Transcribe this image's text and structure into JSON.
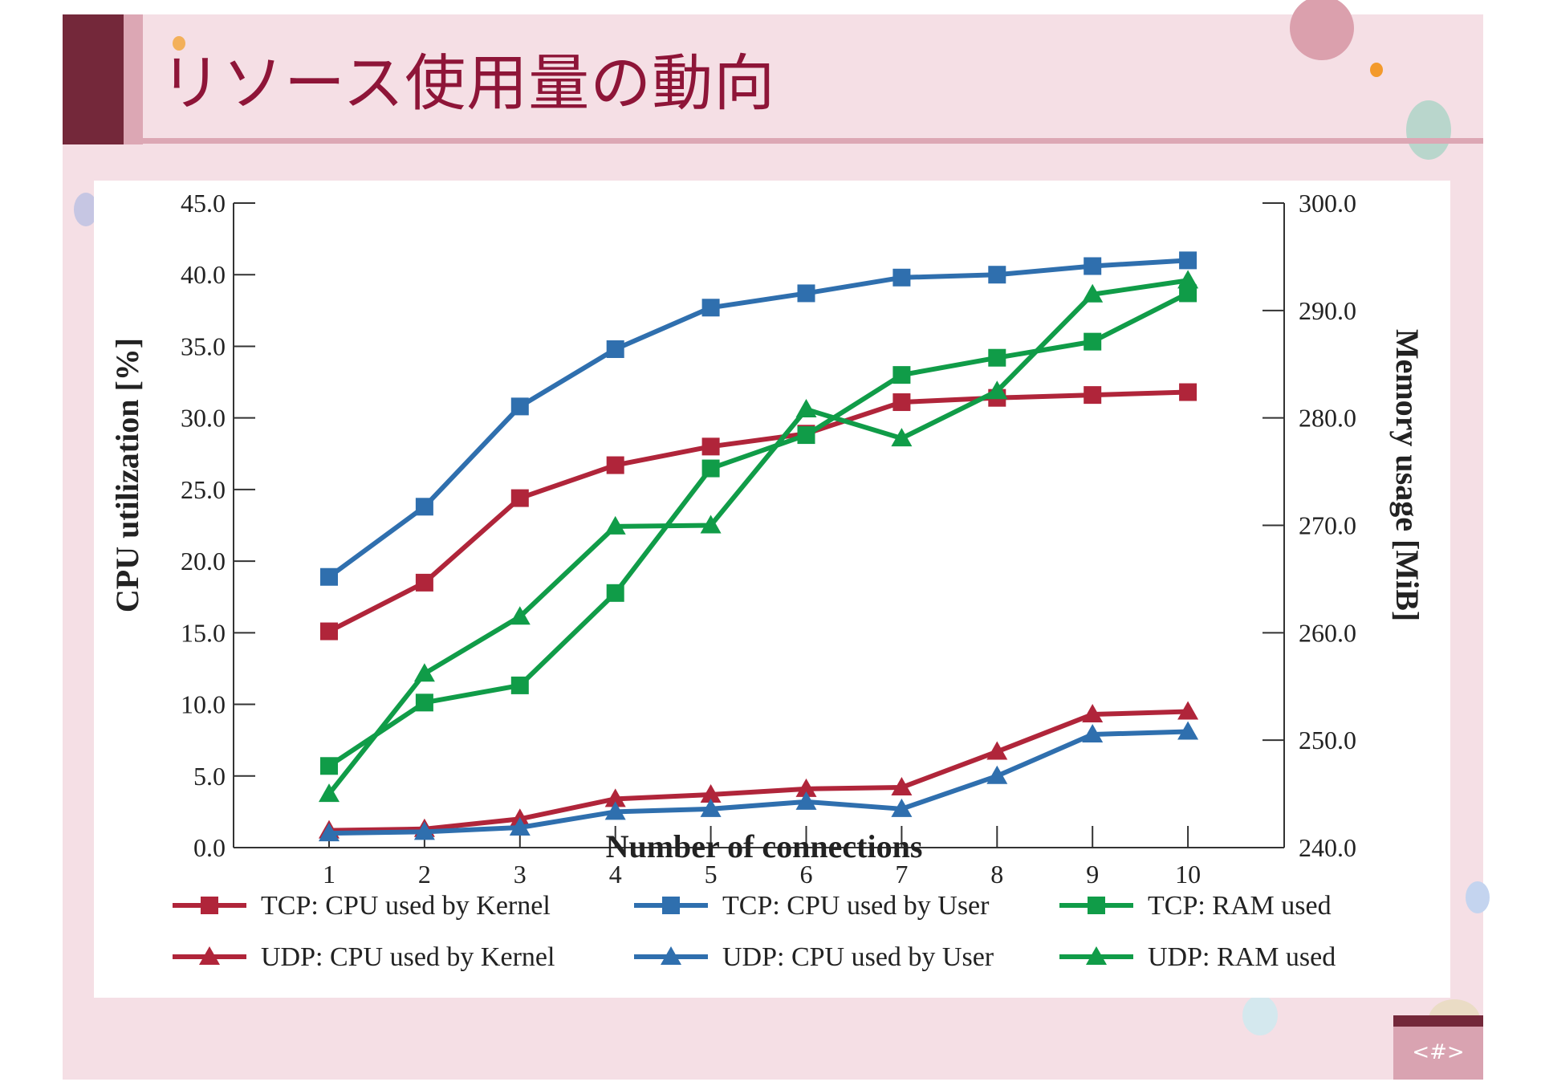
{
  "slide": {
    "title": "リソース使用量の動向",
    "page_number": "<#>",
    "colors": {
      "accent_dark": "#74283a",
      "accent_pink": "#dca7b4",
      "background": "#f5dfe5",
      "title": "#8e1538"
    }
  },
  "chart_data": {
    "type": "line",
    "title": "",
    "xlabel": "Number of connections",
    "ylabel": "CPU utilization [%]",
    "y2label": "Memory usage [MiB]",
    "x": [
      1,
      2,
      3,
      4,
      5,
      6,
      7,
      8,
      9,
      10
    ],
    "ylim": [
      0,
      45
    ],
    "y2lim": [
      240,
      300
    ],
    "yticks": [
      "0.0",
      "5.0",
      "10.0",
      "15.0",
      "20.0",
      "25.0",
      "30.0",
      "35.0",
      "40.0",
      "45.0"
    ],
    "y2ticks": [
      "240.0",
      "250.0",
      "260.0",
      "270.0",
      "280.0",
      "290.0",
      "300.0"
    ],
    "xticks": [
      "1",
      "2",
      "3",
      "4",
      "5",
      "6",
      "7",
      "8",
      "9",
      "10"
    ],
    "grid": false,
    "legend_position": "bottom",
    "series": [
      {
        "name": "TCP: CPU used by Kernel",
        "axis": "left",
        "marker": "square",
        "color": "#b0253a",
        "values": [
          15.1,
          18.5,
          24.4,
          26.7,
          28.0,
          28.9,
          31.1,
          31.4,
          31.6,
          31.8
        ]
      },
      {
        "name": "TCP: CPU used by User",
        "axis": "left",
        "marker": "square",
        "color": "#2f6fae",
        "values": [
          18.9,
          23.8,
          30.8,
          34.8,
          37.7,
          38.7,
          39.8,
          40.0,
          40.6,
          41.0
        ]
      },
      {
        "name": "TCP: RAM used",
        "axis": "right",
        "marker": "square",
        "color": "#109c48",
        "values": [
          247.6,
          253.5,
          255.1,
          263.7,
          275.3,
          278.4,
          284.0,
          285.6,
          287.1,
          291.6
        ]
      },
      {
        "name": "UDP: CPU used by Kernel",
        "axis": "left",
        "marker": "triangle",
        "color": "#b0253a",
        "values": [
          1.2,
          1.3,
          2.0,
          3.4,
          3.7,
          4.1,
          4.2,
          6.7,
          9.3,
          9.5
        ]
      },
      {
        "name": "UDP: CPU used by User",
        "axis": "left",
        "marker": "triangle",
        "color": "#2f6fae",
        "values": [
          1.0,
          1.1,
          1.4,
          2.5,
          2.7,
          3.2,
          2.7,
          5.0,
          7.9,
          8.1
        ]
      },
      {
        "name": "UDP: RAM used",
        "axis": "right",
        "marker": "triangle",
        "color": "#109c48",
        "values": [
          245.0,
          256.2,
          261.5,
          269.9,
          270.0,
          280.8,
          278.1,
          282.5,
          291.5,
          292.8
        ]
      }
    ]
  }
}
